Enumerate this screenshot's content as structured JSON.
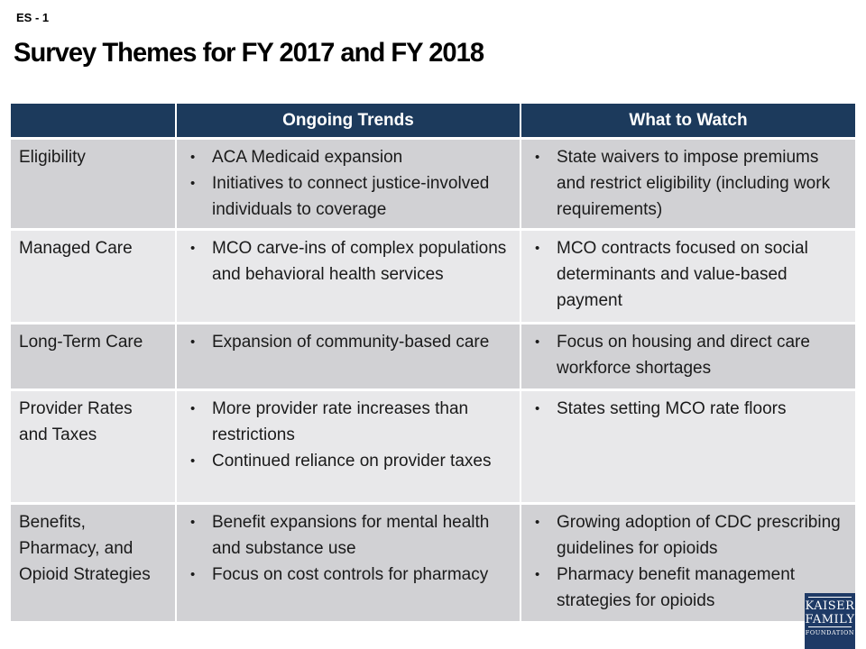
{
  "slide": {
    "code": "ES - 1",
    "title": "Survey Themes for FY 2017 and FY 2018"
  },
  "table": {
    "header": {
      "topic": "",
      "ongoing": "Ongoing Trends",
      "watch": "What to Watch"
    },
    "rows": [
      {
        "label": "Eligibility",
        "ongoing": [
          "ACA Medicaid expansion",
          "Initiatives to connect justice-involved individuals to coverage"
        ],
        "watch": [
          "State waivers to impose premiums and restrict eligibility (including work requirements)"
        ]
      },
      {
        "label": "Managed Care",
        "ongoing": [
          "MCO carve-ins of complex populations and behavioral health services"
        ],
        "watch": [
          "MCO contracts focused on social determinants and value-based payment"
        ]
      },
      {
        "label": "Long-Term Care",
        "ongoing": [
          "Expansion of community-based care"
        ],
        "watch": [
          "Focus on housing and direct care workforce shortages"
        ]
      },
      {
        "label": "Provider Rates and Taxes",
        "ongoing": [
          "More provider rate increases than restrictions",
          "Continued reliance on provider taxes"
        ],
        "watch": [
          "States setting MCO rate floors"
        ]
      },
      {
        "label": "Benefits, Pharmacy, and Opioid Strategies",
        "ongoing": [
          "Benefit expansions for mental health and substance use",
          "Focus on cost controls for pharmacy"
        ],
        "watch": [
          "Growing adoption of CDC prescribing guidelines for opioids",
          "Pharmacy benefit management strategies for opioids"
        ]
      }
    ]
  },
  "glyphs": {
    "bullet": "•"
  },
  "logo": {
    "line1": "KAISER",
    "line2": "FAMILY",
    "line3": "FOUNDATION"
  },
  "colors": {
    "header_bg": "#1c3a5c",
    "row_dark": "#d1d1d4",
    "row_light": "#e8e8ea",
    "logo_bg": "#1e3a66",
    "text": "#1a1a1a"
  }
}
